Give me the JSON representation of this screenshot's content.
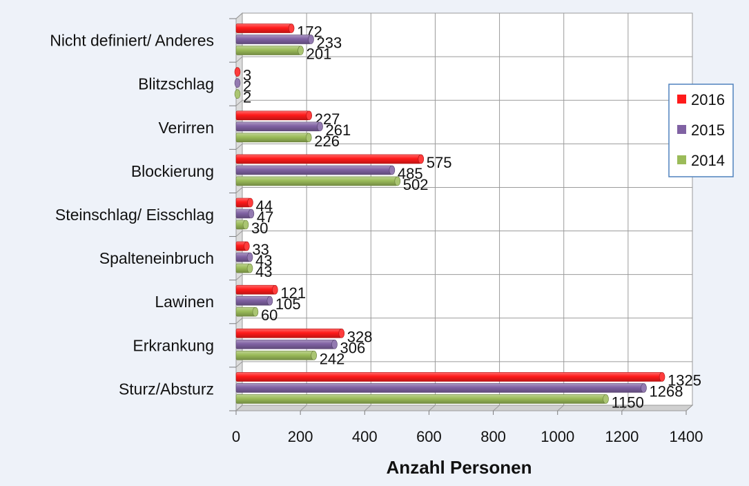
{
  "chart_data": {
    "type": "bar",
    "orientation": "horizontal",
    "categories": [
      "Nicht definiert/ Anderes",
      "Blitzschlag",
      "Verirren",
      "Blockierung",
      "Steinschlag/ Eisschlag",
      "Spalteneinbruch",
      "Lawinen",
      "Erkrankung",
      "Sturz/Absturz"
    ],
    "series": [
      {
        "name": "2016",
        "color": "#ff1a1a",
        "values": [
          172,
          3,
          227,
          575,
          44,
          33,
          121,
          328,
          1325
        ]
      },
      {
        "name": "2015",
        "color": "#8062a3",
        "values": [
          233,
          2,
          261,
          485,
          47,
          43,
          105,
          306,
          1268
        ]
      },
      {
        "name": "2014",
        "color": "#9bbb59",
        "values": [
          201,
          2,
          226,
          502,
          30,
          43,
          60,
          242,
          1150
        ]
      }
    ],
    "xlabel": "Anzahl Personen",
    "ylabel": "",
    "xlim": [
      0,
      1400
    ],
    "xticks": [
      0,
      200,
      400,
      600,
      800,
      1000,
      1200,
      1400
    ],
    "grid": true,
    "legend": "right",
    "style": "3d"
  }
}
